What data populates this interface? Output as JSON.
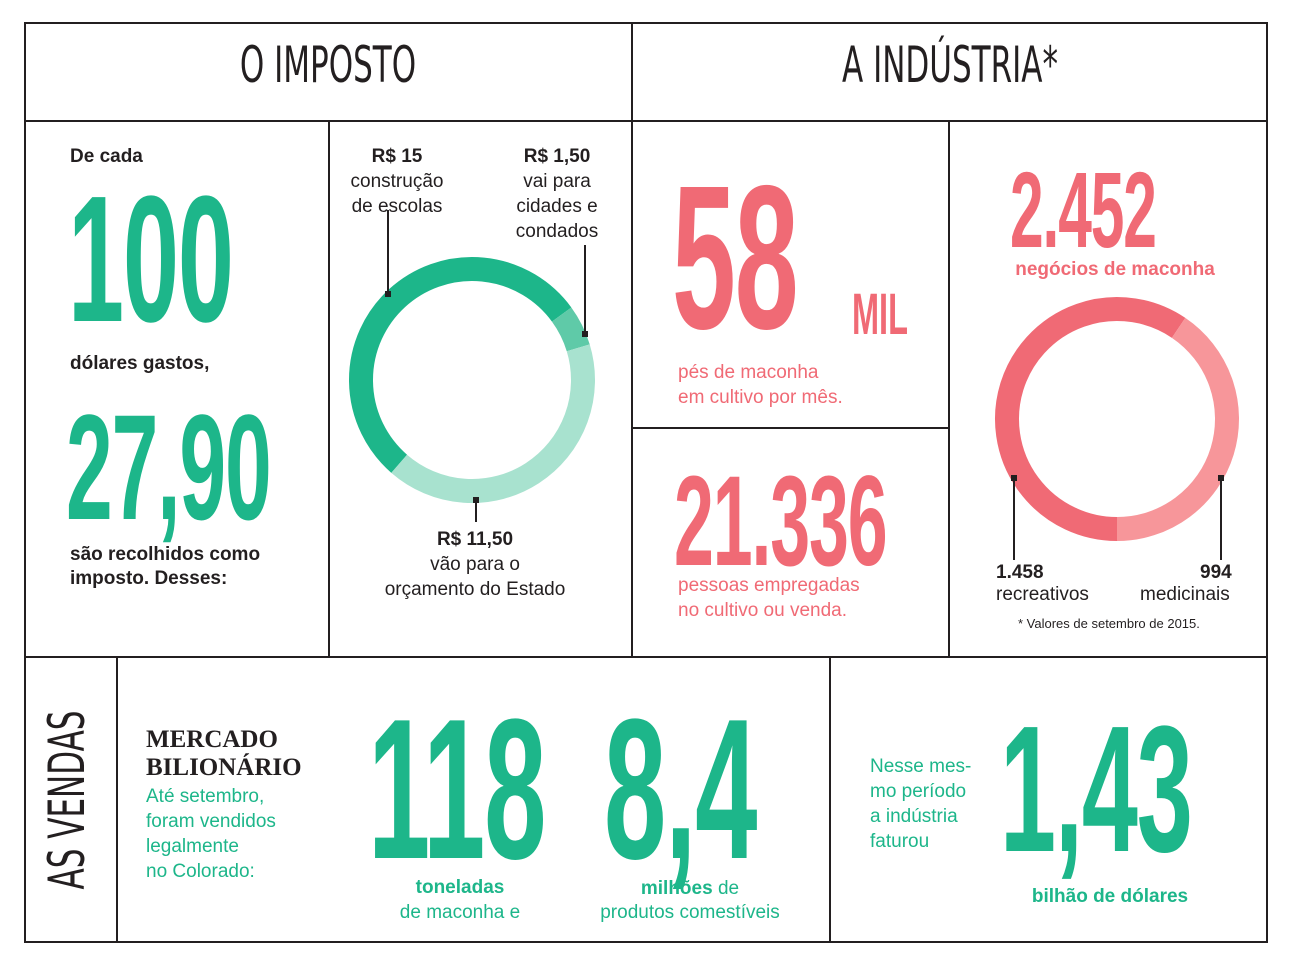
{
  "headers": {
    "imposto": "O IMPOSTO",
    "industria": "A INDÚSTRIA*",
    "vendas": "AS VENDAS"
  },
  "imposto": {
    "intro": "De cada",
    "big_100": "100",
    "dolares": "dólares gastos,",
    "big_2790": "27,90",
    "recolhidos_1": "são recolhidos como",
    "recolhidos_2": "imposto. Desses:"
  },
  "tax_donut": {
    "label_15_value": "R$ 15",
    "label_15_line1": "construção",
    "label_15_line2": "de escolas",
    "label_150_value": "R$ 1,50",
    "label_150_line1": "vai para",
    "label_150_line2": "cidades e",
    "label_150_line3": "condados",
    "label_1150_value": "R$ 11,50",
    "label_1150_line1": "vão para o",
    "label_1150_line2": "orçamento do Estado"
  },
  "industria": {
    "big_58": "58",
    "mil": "MIL",
    "pes_1": "pés de maconha",
    "pes_2": "em cultivo por mês.",
    "big_21336": "21.336",
    "pessoas_1": "pessoas empregadas",
    "pessoas_2": "no cultivo ou venda.",
    "big_2452": "2.452",
    "negocios": "negócios de maconha",
    "rec_value": "1.458",
    "rec_label": "recreativos",
    "med_value": "994",
    "med_label": "medicinais",
    "footnote": "* Valores de setembro de 2015."
  },
  "vendas": {
    "title_1": "MERCADO",
    "title_2": "BILIONÁRIO",
    "sub_1": "Até setembro,",
    "sub_2": "foram vendidos",
    "sub_3": "legalmente",
    "sub_4": "no Colorado:",
    "big_118": "118",
    "toneladas": "toneladas",
    "toneladas_2": "de maconha e",
    "big_84": "8,4",
    "milhoes": "milhões",
    "milhoes_de": " de",
    "milhoes_2": "produtos comestíveis",
    "nesse_1": "Nesse mes-",
    "nesse_2": "mo período",
    "nesse_3": "a indústria",
    "nesse_4": "faturou",
    "big_143": "1,43",
    "bilhao": "bilhão de dólares"
  },
  "colors": {
    "green": "#1db68a",
    "green_mid": "#5fcaa8",
    "green_light": "#a8e2cf",
    "red": "#f06a75",
    "red_light": "#f7969a",
    "ink": "#231f20"
  },
  "chart_data": [
    {
      "type": "pie",
      "categories": [
        "construção de escolas",
        "vai para cidades e condados",
        "vão para o orçamento do Estado"
      ],
      "values": [
        15,
        1.5,
        11.5
      ]
    },
    {
      "type": "pie",
      "categories": [
        "recreativos",
        "medicinais"
      ],
      "values": [
        1458,
        994
      ]
    }
  ]
}
